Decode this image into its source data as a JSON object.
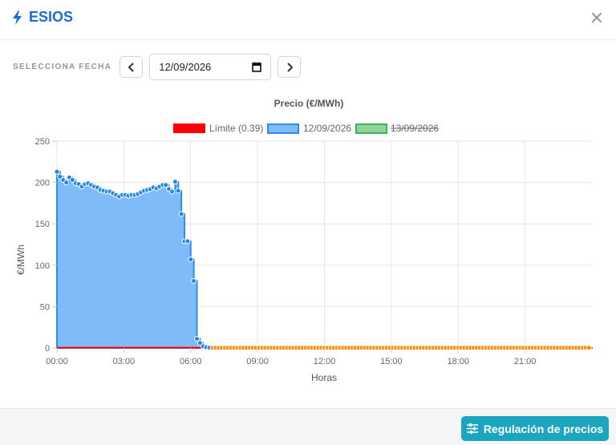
{
  "header": {
    "title": "ESIOS",
    "icon": "bolt-icon",
    "close_icon": "close-icon"
  },
  "toolbar": {
    "date_label": "SELECCIONA FECHA",
    "date_value": "12/09/2026",
    "prev_icon": "chevron-left-icon",
    "next_icon": "chevron-right-icon",
    "calendar_icon": "calendar-icon"
  },
  "footer": {
    "regulation_label": "Regulación de precios",
    "regulation_icon": "sliders-icon"
  },
  "colors": {
    "accent": "#1e6bd6",
    "button": "#1ba5be",
    "limit": "#ff0000",
    "today_fill": "#80bbf9",
    "today_line": "#2d8de8",
    "tomorrow_fill": "#8fd49b",
    "below_limit_point": "#ff8a00"
  },
  "chart_data": {
    "type": "area",
    "title": "Precio (€/MWh)",
    "xlabel": "Horas",
    "ylabel": "€/MWh",
    "ylim": [
      0,
      250
    ],
    "yticks": [
      0,
      50,
      100,
      150,
      200,
      250
    ],
    "xticks": [
      "00:00",
      "03:00",
      "06:00",
      "09:00",
      "12:00",
      "15:00",
      "18:00",
      "21:00"
    ],
    "grid": true,
    "legend_position": "top",
    "legend": [
      {
        "label": "Límite (0.39)",
        "hidden": false
      },
      {
        "label": "12/09/2026",
        "hidden": false
      },
      {
        "label": "13/09/2026",
        "hidden": true
      }
    ],
    "limit": 0.39,
    "interval_minutes": 15,
    "series": [
      {
        "name": "12/09/2026",
        "values": [
          213,
          207,
          203,
          200,
          206,
          203,
          199,
          198,
          195,
          198,
          199,
          197,
          195,
          194,
          191,
          190,
          189,
          189,
          187,
          185,
          183,
          185,
          185,
          184,
          185,
          185,
          186,
          188,
          190,
          191,
          192,
          194,
          193,
          195,
          197,
          197,
          192,
          189,
          201,
          190,
          162,
          129,
          129,
          107,
          81,
          11,
          6,
          2,
          1,
          0.4,
          0.3,
          0.3,
          0.3,
          0.3,
          0.3,
          0.3,
          0.3,
          0.3,
          0.3,
          0.3,
          0.3,
          0.3,
          0.3,
          0.3,
          0.3,
          0.3,
          0.3,
          0.3,
          0.3,
          0.3,
          0.3,
          0.3,
          0.3,
          0.3,
          0.3,
          0.3,
          0.3,
          0.3,
          0.3,
          0.3,
          0.3,
          0.3,
          0.3,
          0.3,
          0.3,
          0.3,
          0.3,
          0.3,
          0.3,
          0.3,
          0.3,
          0.3,
          0.3,
          0.3,
          0.3,
          0.3,
          0.3,
          0.3,
          0.3,
          0.3,
          0.3,
          0.3,
          0.3,
          0.3,
          0.3,
          0.3,
          0.3,
          0.3,
          0.3,
          0.3,
          0.3,
          0.3,
          0.3,
          0.3,
          0.3,
          0.3,
          0.3,
          0.3,
          0.3,
          0.3,
          0.3,
          0.3,
          0.3,
          0.3,
          0.3,
          0.3,
          0.3,
          0.3,
          0.3,
          0.3,
          0.3,
          0.3,
          0.3,
          0.3,
          0.3,
          0.3,
          0.3,
          0.3,
          0.3,
          0.3,
          0.3,
          0.3,
          0.3,
          0.3,
          0.3,
          0.3,
          0.3,
          0.3,
          0.3,
          0.3,
          0.3,
          0.3,
          0.3,
          0.3,
          0.3,
          0.3,
          0.3,
          0.3,
          0.3,
          0.3,
          0.3,
          0.3,
          0.3,
          0.3,
          0.3,
          0.3,
          0.3,
          0.3,
          0.3,
          0.3,
          0.3,
          0.3
        ]
      }
    ]
  }
}
